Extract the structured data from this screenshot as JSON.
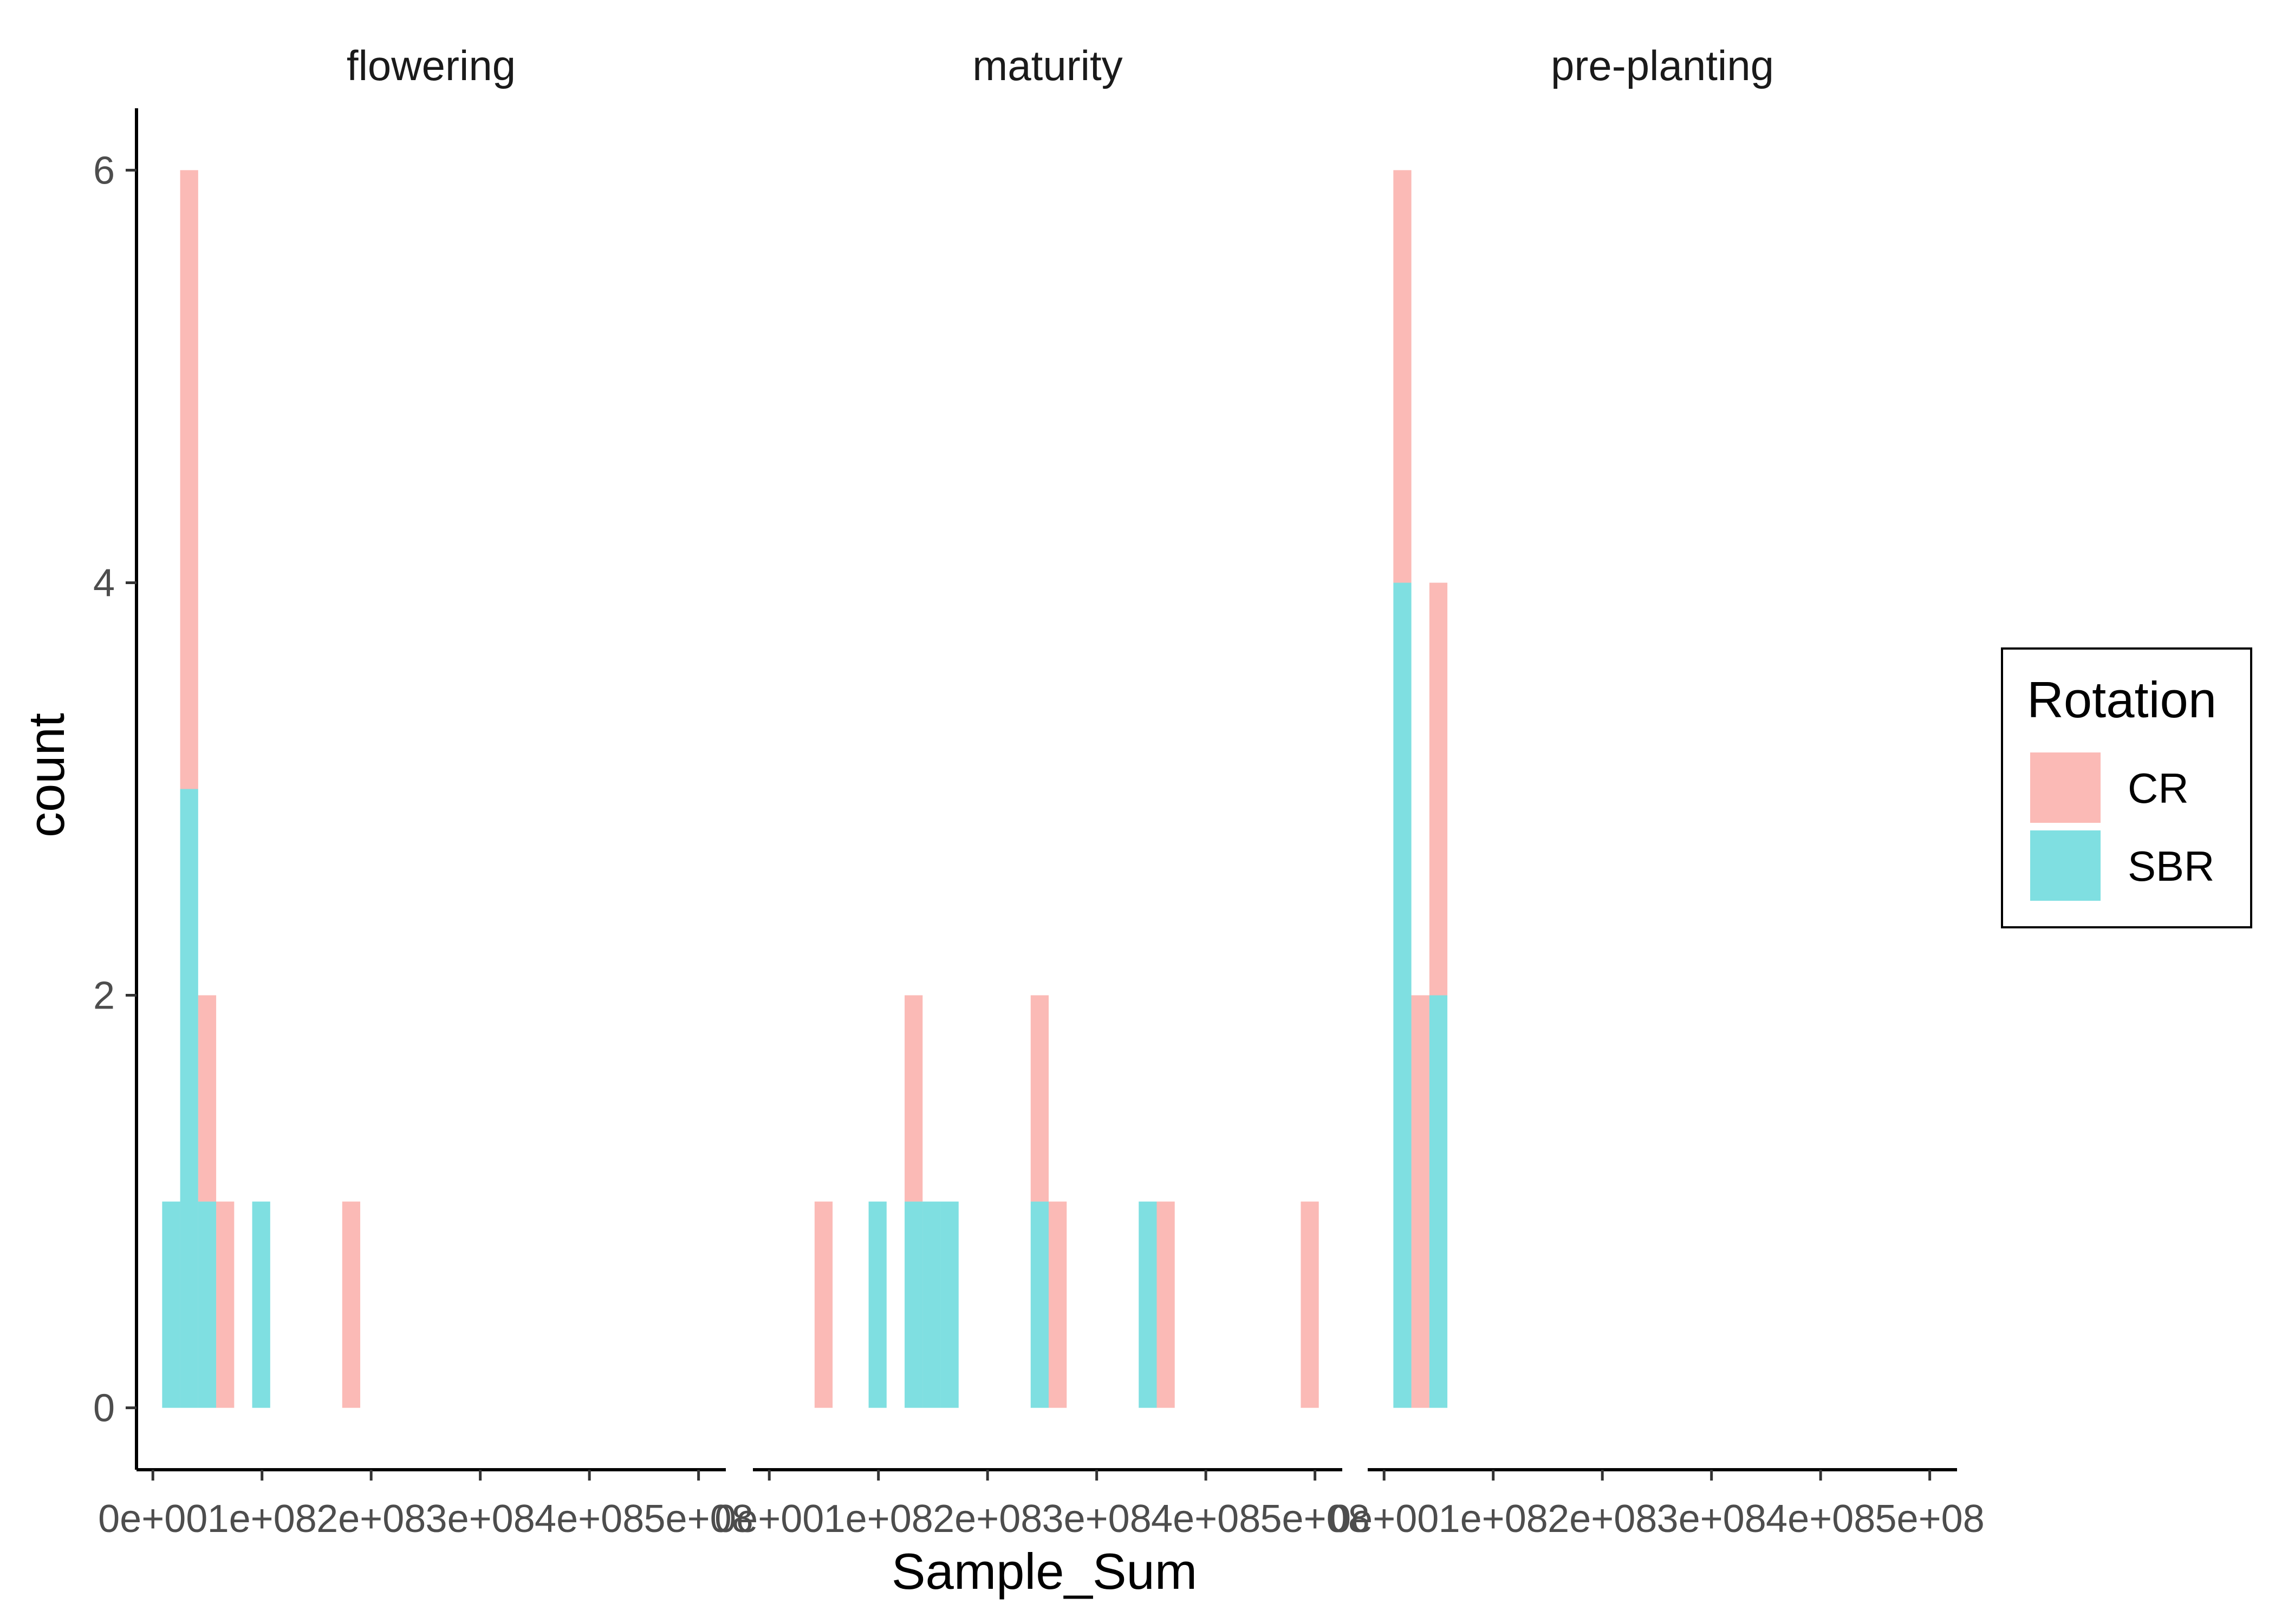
{
  "chart_data": {
    "type": "bar",
    "subtype": "faceted stacked histogram",
    "xlabel": "Sample_Sum",
    "ylabel": "count",
    "x_ticks": [
      "0e+00",
      "1e+08",
      "2e+08",
      "3e+08",
      "4e+08",
      "5e+08"
    ],
    "x_tick_values": [
      0,
      100000000,
      200000000,
      300000000,
      400000000,
      500000000
    ],
    "xlim": [
      -15000000,
      525000000
    ],
    "y_ticks": [
      "0",
      "2",
      "4",
      "6"
    ],
    "y_tick_values": [
      0,
      2,
      4,
      6
    ],
    "ylim": [
      -0.3,
      6.3
    ],
    "bin_width": 16500000,
    "grid": false,
    "legend": {
      "title": "Rotation",
      "position": "right",
      "entries": [
        {
          "label": "CR",
          "color": "#F8766D"
        },
        {
          "label": "SBR",
          "color": "#00BFC4"
        }
      ]
    },
    "fill_alpha": 0.5,
    "facets": [
      {
        "label": "flowering",
        "bins": [
          {
            "x_start": 8500000,
            "CR": 0,
            "SBR": 1
          },
          {
            "x_start": 25000000,
            "CR": 3,
            "SBR": 3
          },
          {
            "x_start": 41500000,
            "CR": 1,
            "SBR": 1
          },
          {
            "x_start": 58000000,
            "CR": 1,
            "SBR": 0
          },
          {
            "x_start": 91000000,
            "CR": 0,
            "SBR": 1
          },
          {
            "x_start": 173500000,
            "CR": 1,
            "SBR": 0
          }
        ]
      },
      {
        "label": "maturity",
        "bins": [
          {
            "x_start": 41500000,
            "CR": 1,
            "SBR": 0
          },
          {
            "x_start": 91000000,
            "CR": 0,
            "SBR": 1
          },
          {
            "x_start": 124000000,
            "CR": 1,
            "SBR": 1
          },
          {
            "x_start": 140500000,
            "CR": 0,
            "SBR": 1
          },
          {
            "x_start": 157000000,
            "CR": 0,
            "SBR": 1
          },
          {
            "x_start": 239500000,
            "CR": 1,
            "SBR": 1
          },
          {
            "x_start": 256000000,
            "CR": 1,
            "SBR": 0
          },
          {
            "x_start": 338500000,
            "CR": 0,
            "SBR": 1
          },
          {
            "x_start": 355000000,
            "CR": 1,
            "SBR": 0
          },
          {
            "x_start": 487000000,
            "CR": 1,
            "SBR": 0
          }
        ]
      },
      {
        "label": "pre-planting",
        "bins": [
          {
            "x_start": 8500000,
            "CR": 2,
            "SBR": 4
          },
          {
            "x_start": 25000000,
            "CR": 2,
            "SBR": 0
          },
          {
            "x_start": 41500000,
            "CR": 2,
            "SBR": 2
          }
        ]
      }
    ]
  }
}
